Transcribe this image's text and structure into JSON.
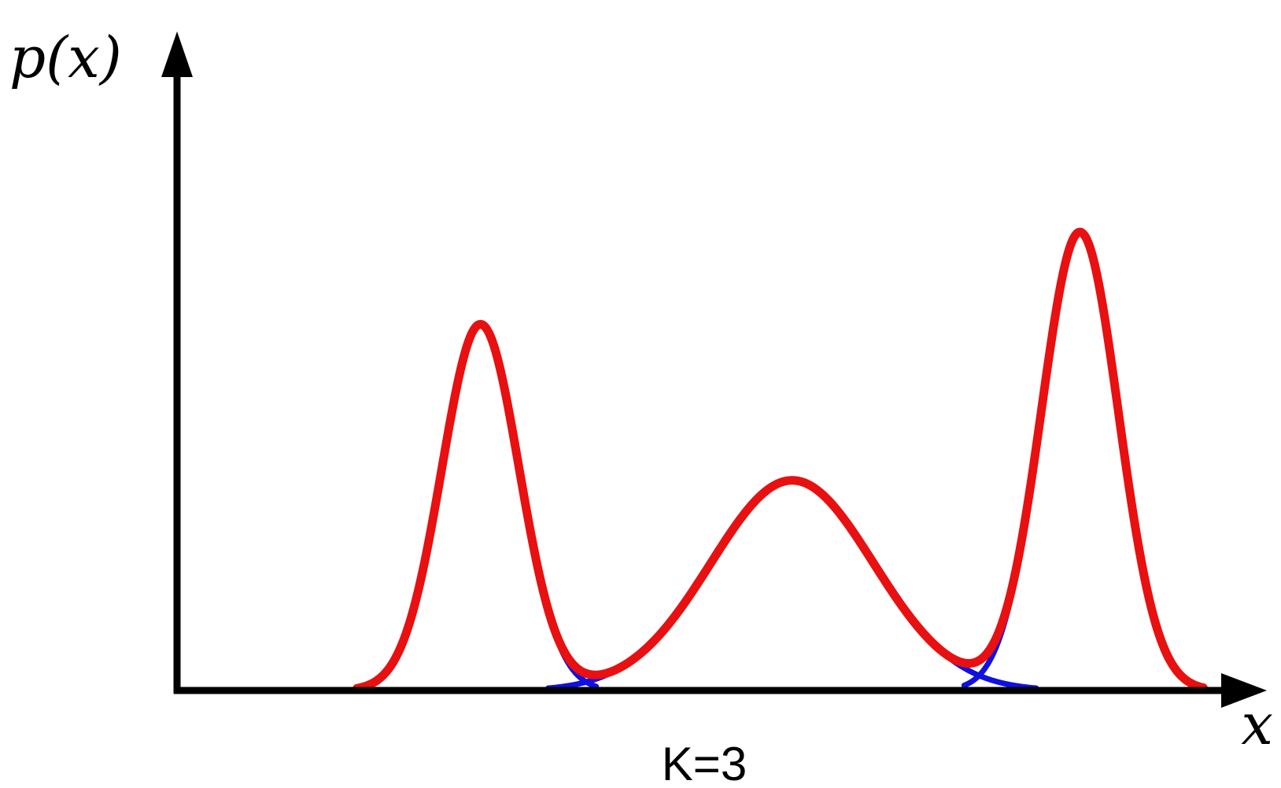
{
  "chart_data": {
    "type": "line",
    "ylabel": "p(x)",
    "xlabel": "x",
    "caption": "K=3",
    "x_range": [
      0,
      1
    ],
    "y_range": [
      0,
      1
    ],
    "grid": false,
    "legend": "none",
    "components": [
      {
        "mean": 0.291,
        "std": 0.037,
        "weight": 0.239,
        "peak": 0.697
      },
      {
        "mean": 0.59,
        "std": 0.078,
        "weight": 0.313,
        "peak": 0.4
      },
      {
        "mean": 0.866,
        "std": 0.037,
        "weight": 0.448,
        "peak": 0.872
      }
    ],
    "series": [
      {
        "kind": "components",
        "color": "#1010e0"
      },
      {
        "kind": "mixture",
        "color": "#e81010"
      }
    ]
  }
}
